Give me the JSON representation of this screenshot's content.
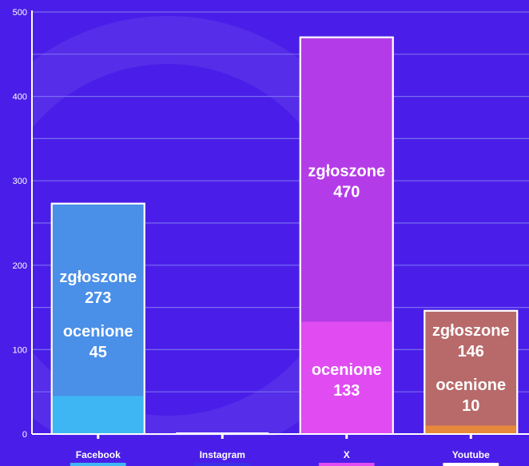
{
  "chart_data": {
    "type": "bar",
    "categories": [
      "Facebook",
      "Instagram",
      "X",
      "Youtube"
    ],
    "series": [
      {
        "name": "zgłoszone",
        "values": [
          273,
          0,
          470,
          146
        ]
      },
      {
        "name": "ocenione",
        "values": [
          45,
          0,
          133,
          10
        ]
      }
    ],
    "ylim": [
      0,
      500
    ],
    "yticks": [
      0,
      100,
      200,
      300,
      400,
      500
    ],
    "grid": true,
    "overlap": true
  },
  "labels": {
    "submitted": "zgłoszone",
    "rated": "ocenione"
  },
  "colors": {
    "background": "#4a1ee8",
    "grid": "#7a6cf0",
    "axis": "#ffffff",
    "submitted": [
      "#4a8fe8",
      "#4a1ee8",
      "#b43ce8",
      "#b86a6a"
    ],
    "rated": [
      "#3fb6f4",
      "#4a1ee8",
      "#e04cf2",
      "#e8883a"
    ],
    "category_underline": [
      "#3fb6f4",
      "#3a2fe8",
      "#e04cf2",
      "#ffffff"
    ]
  }
}
